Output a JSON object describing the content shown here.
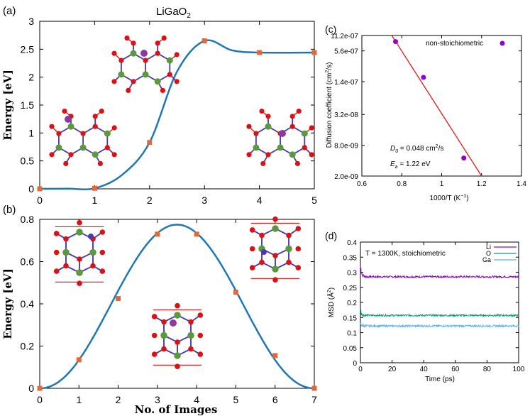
{
  "figure": {
    "panel_a_label": "(a)",
    "panel_b_label": "(b)",
    "panel_c_label": "(c)",
    "panel_d_label": "(d)"
  },
  "colors": {
    "curve": "#1f77b4",
    "marker": "#e2693a",
    "line_c": "#e31a1c",
    "point_c": "#9400d3",
    "li": "#9400d3",
    "o": "#009e73",
    "ga": "#56b4e9",
    "atom_o": "#dd1111",
    "atom_ga": "#5a9a3a",
    "atom_li": "#8a3aa0",
    "bond": "#4a3ab0"
  },
  "chart_data": [
    {
      "id": "a",
      "type": "line",
      "title_main": "LiGaO",
      "title_sub": "2",
      "xlabel": "",
      "ylabel": "Energy [eV]",
      "xlim": [
        0,
        5
      ],
      "ylim": [
        0,
        3
      ],
      "xticks": [
        "0",
        "1",
        "2",
        "3",
        "4",
        "5"
      ],
      "yticks": [
        "0",
        "0.5",
        "1",
        "1.5",
        "2",
        "2.5",
        "3"
      ],
      "x": [
        0,
        1,
        2,
        3,
        4,
        5
      ],
      "values": [
        0.0,
        0.01,
        0.83,
        2.65,
        2.44,
        2.44
      ]
    },
    {
      "id": "b",
      "type": "line",
      "xlabel": "No. of Images",
      "ylabel": "Energy [eV]",
      "xlim": [
        0,
        7
      ],
      "ylim": [
        0,
        0.8
      ],
      "xticks": [
        "0",
        "1",
        "2",
        "3",
        "4",
        "5",
        "6",
        "7"
      ],
      "yticks": [
        "0",
        "0.2",
        "0.4",
        "0.6",
        "0.8"
      ],
      "x": [
        0,
        1,
        2,
        3,
        4,
        5,
        6,
        7
      ],
      "values": [
        0.0,
        0.135,
        0.425,
        0.73,
        0.73,
        0.455,
        0.155,
        0.0
      ],
      "peak": {
        "x": 3.5,
        "y": 0.775
      }
    },
    {
      "id": "c",
      "type": "scatter",
      "xlabel": "1000/T (K",
      "xlabel_sup": "−1",
      "xlabel_end": ")",
      "ylabel": "Diffusion coefficient (cm",
      "ylabel_sup": "2",
      "ylabel_end": "/s)",
      "xlim": [
        0.6,
        1.4
      ],
      "ylim_log": [
        2e-09,
        1.12e-06
      ],
      "xticks": [
        "0.6",
        "0.8",
        "1",
        "1.2",
        "1.4"
      ],
      "yticks": [
        "2.0e-09",
        "8.0e-09",
        "3.2e-08",
        "1.4e-07",
        "5.6e-07",
        "11.2e-07"
      ],
      "legend": "non-stoichiometric",
      "points": [
        [
          0.769,
          8.5e-07
        ],
        [
          0.909,
          1.7e-07
        ],
        [
          1.111,
          4.5e-09
        ]
      ],
      "fit_line": [
        [
          0.75,
          1.12e-06
        ],
        [
          1.2,
          2e-09
        ]
      ],
      "annot_d0_label": "D",
      "annot_d0_sub": "0",
      "annot_d0_value": " = 0.048 cm",
      "annot_d0_sup": "2",
      "annot_d0_end": "/s",
      "annot_ea_label": "E",
      "annot_ea_sub": "a",
      "annot_ea_value": " = 1.22 eV"
    },
    {
      "id": "d",
      "type": "line",
      "xlabel": "Time (ps)",
      "ylabel": "MSD (Å",
      "ylabel_sup": "2",
      "ylabel_end": ")",
      "xlim": [
        0,
        100
      ],
      "ylim": [
        0,
        0.4
      ],
      "xticks": [
        "0",
        "20",
        "40",
        "60",
        "80",
        "100"
      ],
      "yticks": [
        "0",
        "0.05",
        "0.1",
        "0.15",
        "0.2",
        "0.25",
        "0.3",
        "0.35",
        "0.4"
      ],
      "annotation": "T = 1300K, stoichiometric",
      "series": [
        {
          "name": "Li",
          "plateau": 0.285,
          "initial": 0.32
        },
        {
          "name": "O",
          "plateau": 0.157,
          "initial": 0.175
        },
        {
          "name": "Ga",
          "plateau": 0.122,
          "initial": 0.13
        }
      ]
    }
  ]
}
